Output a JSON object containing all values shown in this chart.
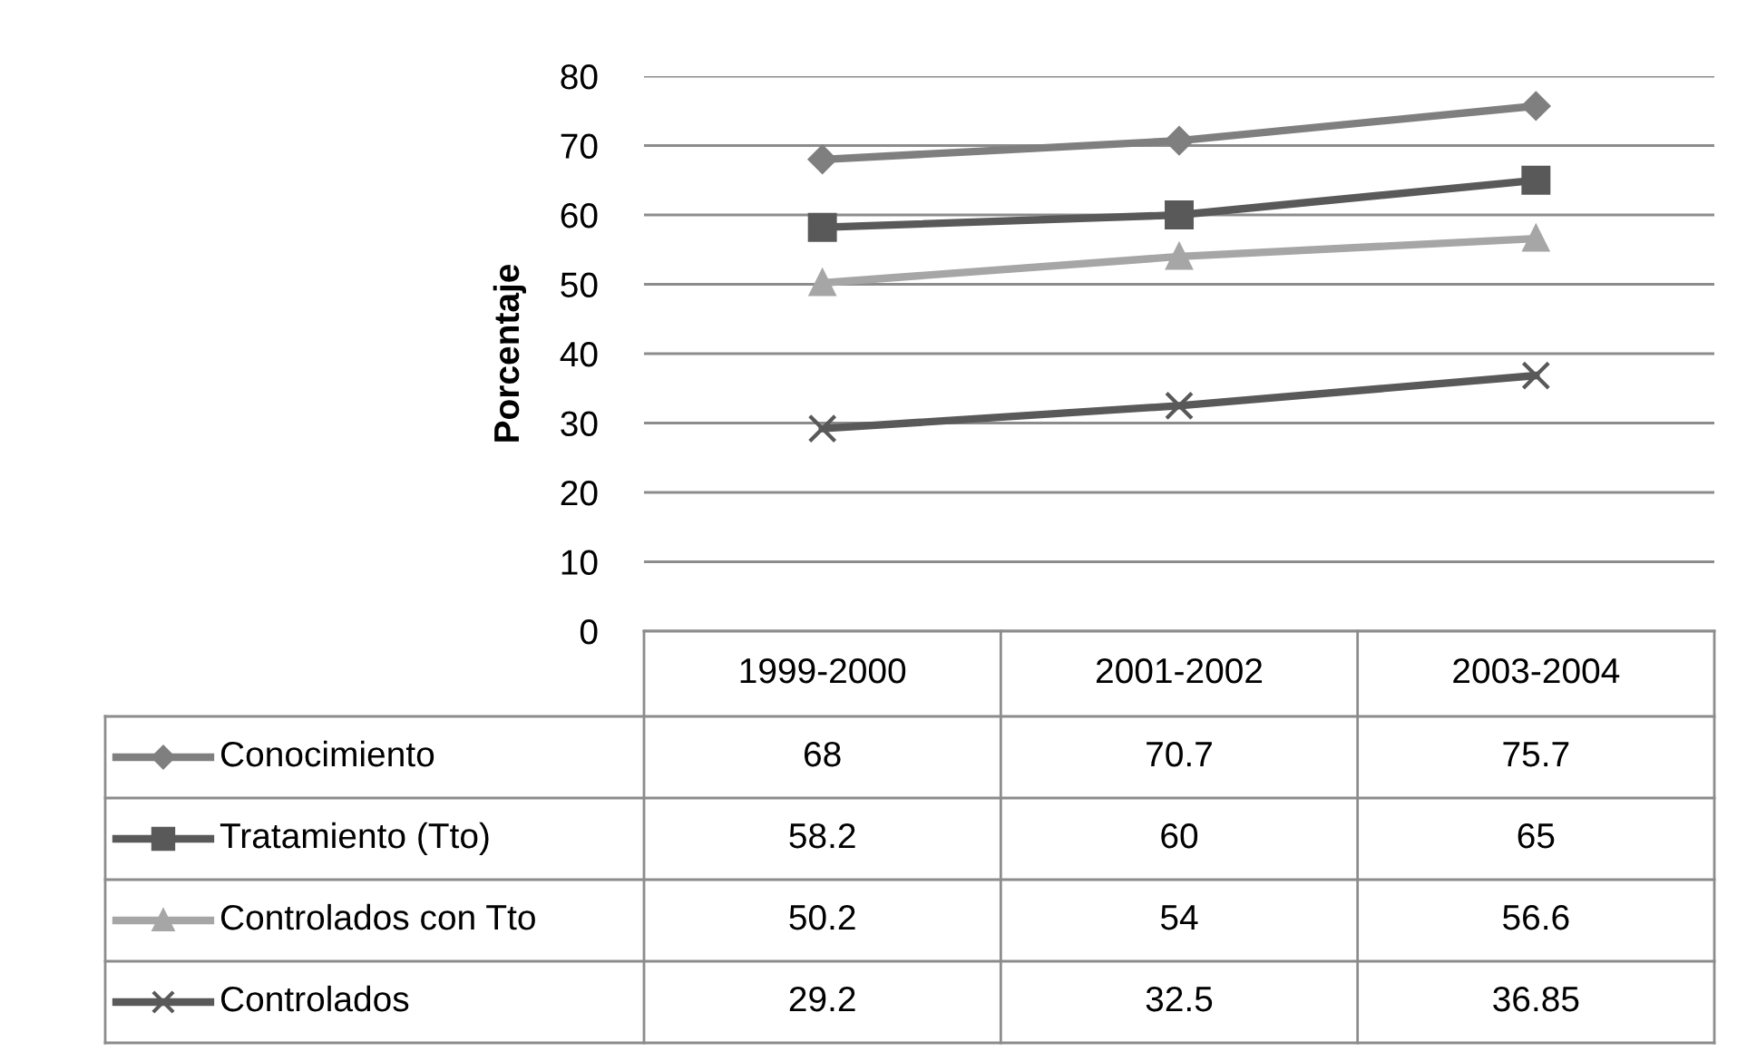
{
  "chart_data": {
    "type": "line",
    "ylabel": "Porcentaje",
    "categories": [
      "1999-2000",
      "2001-2002",
      "2003-2004"
    ],
    "series": [
      {
        "name": "Conocimiento",
        "color": "#7f7f7f",
        "marker": "diamond",
        "values": [
          68,
          70.7,
          75.7
        ]
      },
      {
        "name": "Tratamiento (Tto)",
        "color": "#595959",
        "marker": "square",
        "values": [
          58.2,
          60,
          65
        ]
      },
      {
        "name": "Controlados con Tto",
        "color": "#a6a6a6",
        "marker": "triangle",
        "values": [
          50.2,
          54,
          56.6
        ]
      },
      {
        "name": "Controlados",
        "color": "#595959",
        "marker": "cross",
        "values": [
          29.2,
          32.5,
          36.85
        ]
      }
    ],
    "ylim": [
      0,
      80
    ],
    "yticks": [
      0,
      10,
      20,
      30,
      40,
      50,
      60,
      70,
      80
    ],
    "grid": "y",
    "legend": "bottom",
    "data_labels": true
  }
}
